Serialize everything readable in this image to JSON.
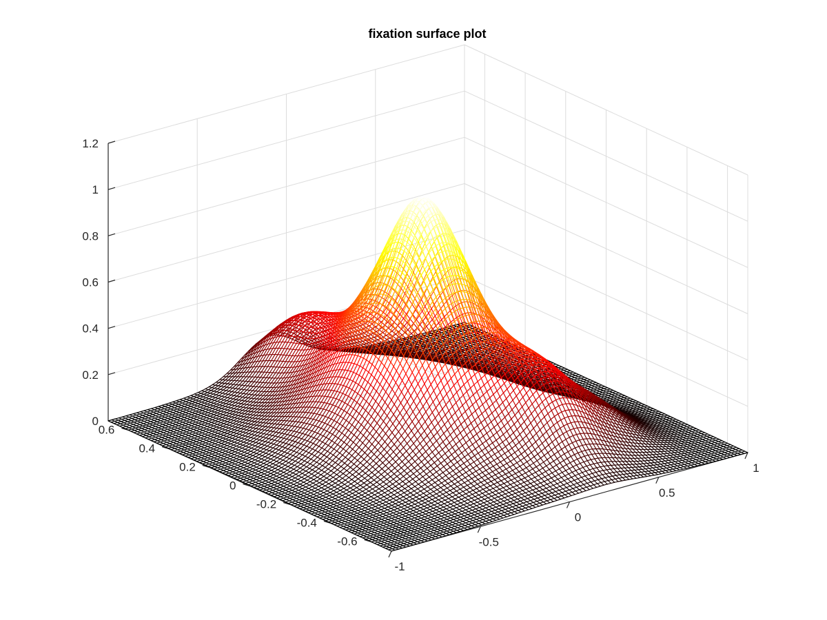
{
  "chart_data": {
    "type": "surface",
    "title": "fixation surface plot",
    "xlabel": "",
    "ylabel": "",
    "zlabel": "",
    "x_range": [
      -1,
      1
    ],
    "y_range": [
      -0.7,
      0.7
    ],
    "zlim": [
      0,
      1.2
    ],
    "x_ticks": [
      "-1",
      "-0.5",
      "0",
      "0.5",
      "1"
    ],
    "y_ticks": [
      "-0.6",
      "-0.4",
      "-0.2",
      "0",
      "0.2",
      "0.4",
      "0.6"
    ],
    "z_ticks": [
      "0",
      "0.2",
      "0.4",
      "0.6",
      "0.8",
      "1",
      "1.2"
    ],
    "grid": true,
    "colormap": "hot",
    "mesh_resolution": 100,
    "peak": {
      "x": 0.0,
      "y": 0.05,
      "z": 1.0
    },
    "components": [
      {
        "x": 0.0,
        "y": 0.05,
        "amplitude": 0.42,
        "sigma": 0.3
      },
      {
        "x": -0.05,
        "y": 0.0,
        "amplitude": 0.3,
        "sigma": 0.18
      },
      {
        "x": 0.05,
        "y": 0.1,
        "amplitude": 0.18,
        "sigma": 0.1
      },
      {
        "x": 0.2,
        "y": 0.05,
        "amplitude": 0.18,
        "sigma": 0.12
      },
      {
        "x": 0.25,
        "y": -0.35,
        "amplitude": 0.22,
        "sigma": 0.15
      },
      {
        "x": -0.1,
        "y": 0.55,
        "amplitude": 0.2,
        "sigma": 0.15
      },
      {
        "x": 0.55,
        "y": -0.3,
        "amplitude": 0.12,
        "sigma": 0.15
      },
      {
        "x": -0.4,
        "y": 0.0,
        "amplitude": 0.1,
        "sigma": 0.2
      }
    ]
  }
}
